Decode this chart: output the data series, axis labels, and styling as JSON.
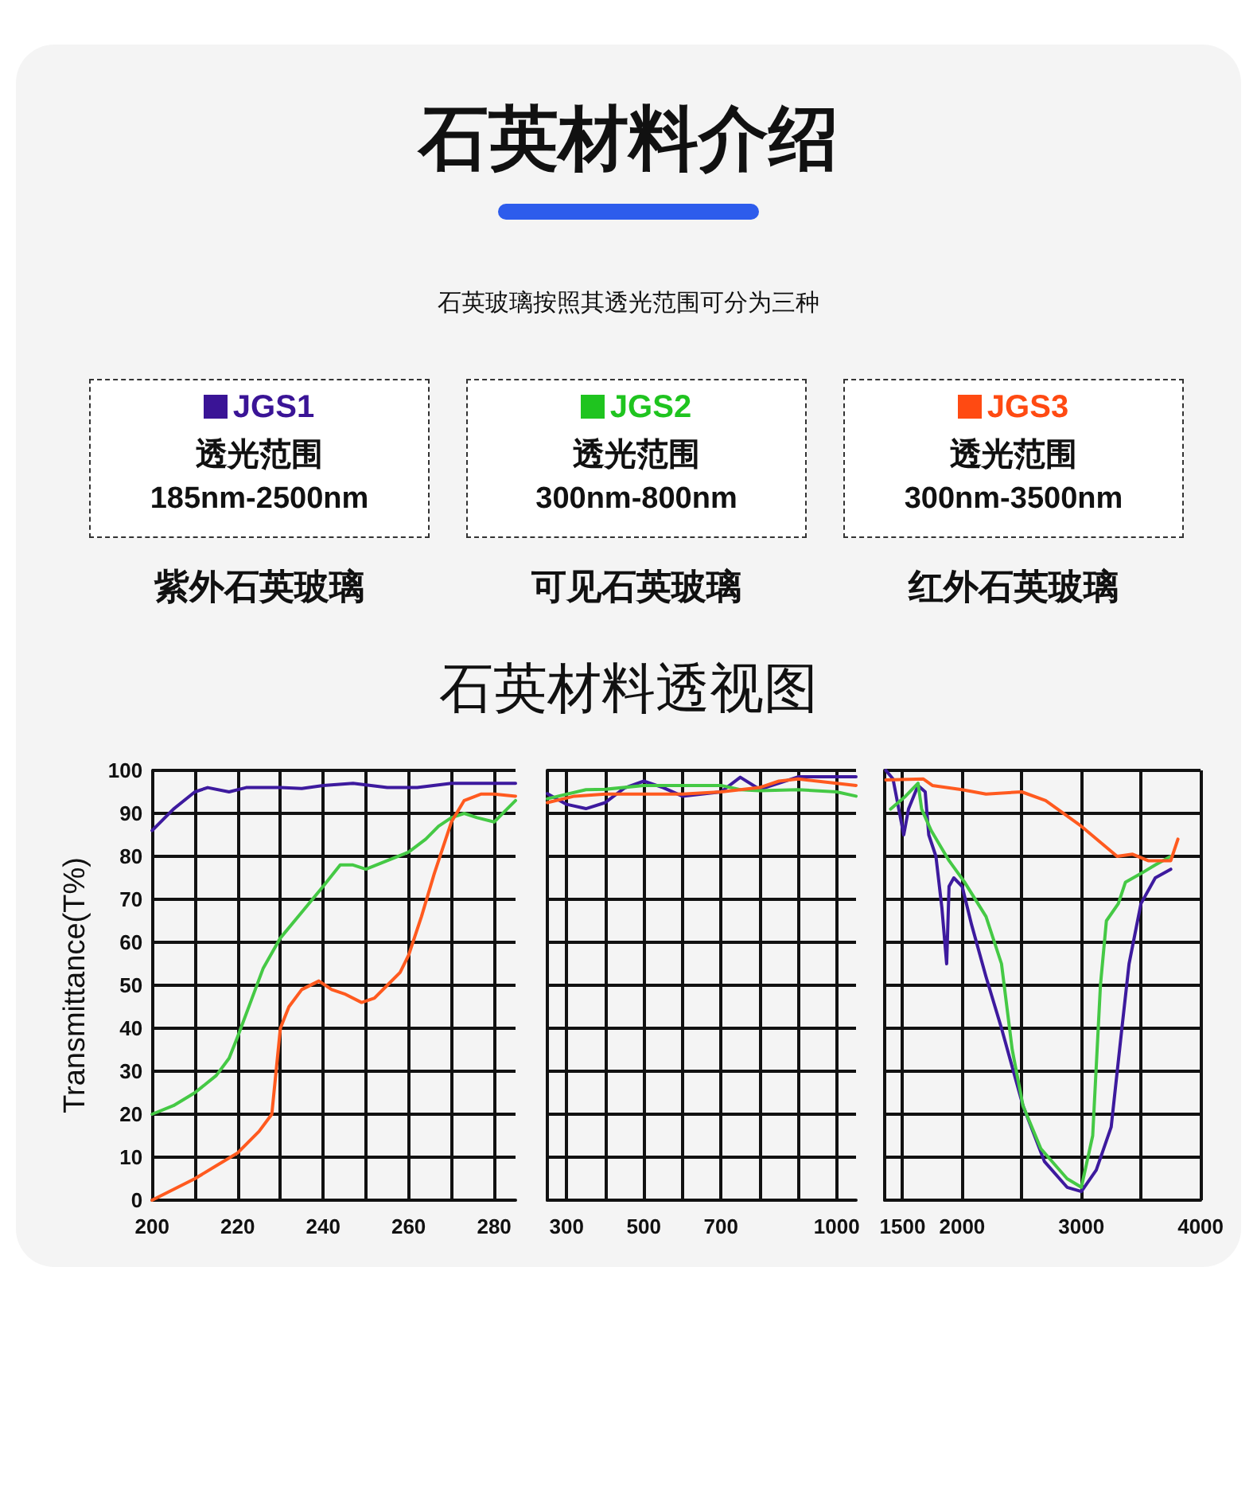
{
  "chart_data": [
    {
      "type": "other",
      "title": "石英材料介绍",
      "subtitle": "石英玻璃按照其透光范围可分为三种",
      "colors": [
        "#3a1496",
        "#1fc41f",
        "#ff4a12"
      ],
      "annotations": [
        "JGS1",
        "透光范围",
        "185nm-2500nm",
        "紫外石英玻璃",
        "JGS2",
        "透光范围",
        "300nm-800nm",
        "可见石英玻璃",
        "JGS3",
        "透光范围",
        "300nm-3500nm",
        "红外石英玻璃"
      ]
    },
    {
      "type": "line",
      "title": "石英材料透视图",
      "ylabel": "Transmittance(T%)",
      "grid": true,
      "xlim": [
        200,
        285
      ],
      "xticks": [
        200,
        {
          "value": 210,
          "label": null
        },
        220,
        {
          "value": 230,
          "label": null
        },
        240,
        {
          "value": 250,
          "label": null
        },
        260,
        {
          "value": 270,
          "label": null
        },
        280
      ],
      "ylim": [
        0,
        100
      ],
      "yticks": [
        0,
        10,
        20,
        30,
        40,
        50,
        60,
        70,
        80,
        90,
        100
      ],
      "series": [
        {
          "color": "#3d1a9e",
          "x": [
            200,
            205,
            210,
            213,
            218,
            222,
            230,
            235,
            240,
            247,
            255,
            262,
            270,
            285
          ],
          "values": [
            86,
            91,
            95,
            96,
            95,
            96,
            96,
            95.8,
            96.5,
            97,
            96,
            96,
            97,
            97
          ]
        },
        {
          "color": "#45c945",
          "x": [
            200,
            205,
            210,
            215,
            218,
            220,
            223,
            226,
            230,
            235,
            240,
            244,
            247,
            250,
            255,
            260,
            264,
            267,
            270,
            273,
            276,
            280,
            285
          ],
          "values": [
            20,
            22,
            25,
            29,
            33,
            38,
            46,
            54,
            61,
            67,
            73,
            78,
            78,
            77,
            79,
            81,
            84,
            87,
            89,
            90,
            89,
            88,
            93
          ]
        },
        {
          "color": "#ff5a1f",
          "x": [
            200,
            205,
            210,
            215,
            220,
            225,
            228,
            229,
            230,
            232,
            235,
            239,
            242,
            245,
            249,
            252,
            255,
            258,
            260,
            263,
            266,
            270,
            273,
            277,
            280,
            285
          ],
          "values": [
            0,
            2.5,
            5,
            8,
            11,
            16,
            20,
            30,
            40,
            45,
            49,
            51,
            49,
            48,
            46,
            47,
            50,
            53,
            57,
            66,
            76,
            88,
            93,
            94.5,
            94.5,
            94
          ]
        }
      ]
    },
    {
      "type": "line",
      "grid": true,
      "tick_labels": "x",
      "xlim": [
        250,
        1050
      ],
      "xticks": [
        300,
        {
          "value": 400,
          "label": null
        },
        500,
        {
          "value": 600,
          "label": null
        },
        700,
        {
          "value": 800,
          "label": null
        },
        {
          "value": 900,
          "label": null
        },
        1000
      ],
      "ylim": [
        0,
        100
      ],
      "yticks": [
        0,
        10,
        20,
        30,
        40,
        50,
        60,
        70,
        80,
        90,
        100
      ],
      "series": [
        {
          "color": "#3d1a9e",
          "x": [
            250,
            300,
            350,
            400,
            450,
            500,
            550,
            600,
            650,
            700,
            750,
            800,
            850,
            900,
            950,
            1050
          ],
          "values": [
            94.6,
            92.1,
            91.1,
            92.5,
            95.9,
            97.5,
            96,
            94,
            94.5,
            95,
            98.4,
            95.6,
            97,
            98.5,
            98.5,
            98.5
          ]
        },
        {
          "color": "#45c945",
          "x": [
            250,
            350,
            400,
            500,
            700,
            750,
            800,
            900,
            1000,
            1050
          ],
          "values": [
            93.4,
            95.5,
            95.6,
            96.5,
            96.5,
            95.5,
            95.3,
            95.5,
            95,
            94
          ]
        },
        {
          "color": "#ff5a1f",
          "x": [
            250,
            320,
            400,
            600,
            700,
            800,
            850,
            900,
            1000,
            1050
          ],
          "values": [
            92.5,
            94,
            94.5,
            94.5,
            95,
            96,
            97.5,
            98,
            97,
            96.5
          ]
        }
      ]
    },
    {
      "type": "line",
      "grid": true,
      "tick_labels": "x",
      "xlim": [
        1350,
        4000
      ],
      "xticks": [
        1500,
        2000,
        {
          "value": 2500,
          "label": null
        },
        3000,
        {
          "value": 3500,
          "label": null
        },
        4000
      ],
      "ylim": [
        0,
        100
      ],
      "yticks": [
        0,
        10,
        20,
        30,
        40,
        50,
        60,
        70,
        80,
        90,
        100
      ],
      "series": [
        {
          "color": "#3d1a9e",
          "x": [
            1360,
            1420,
            1510,
            1550,
            1630,
            1690,
            1720,
            1780,
            1830,
            1870,
            1890,
            1930,
            2000,
            2080,
            2200,
            2330,
            2510,
            2690,
            2880,
            3000,
            3125,
            3250,
            3340,
            3400,
            3500,
            3620,
            3750
          ],
          "values": [
            100,
            98,
            85,
            91,
            96.5,
            95,
            85,
            80,
            68,
            55,
            73,
            75,
            73,
            64,
            52,
            40,
            22,
            9,
            3,
            2,
            7,
            17,
            40,
            55,
            69,
            75,
            77
          ]
        },
        {
          "color": "#45c945",
          "x": [
            1400,
            1525,
            1630,
            1660,
            1740,
            1890,
            2020,
            2200,
            2330,
            2420,
            2510,
            2660,
            2880,
            3000,
            3095,
            3160,
            3210,
            3310,
            3370,
            3500,
            3620,
            3750
          ],
          "values": [
            91,
            94,
            97,
            91,
            86,
            79,
            74,
            66,
            55,
            35,
            22,
            12,
            5,
            3,
            15,
            50,
            65,
            69,
            74,
            76,
            78,
            80
          ]
        },
        {
          "color": "#ff5a1f",
          "x": [
            1360,
            1675,
            1750,
            2000,
            2200,
            2500,
            2700,
            3000,
            3300,
            3430,
            3560,
            3750,
            3810
          ],
          "values": [
            97.8,
            98,
            96.5,
            95.5,
            94.5,
            95,
            93,
            87,
            80,
            80.5,
            79,
            79,
            84
          ]
        }
      ]
    }
  ]
}
